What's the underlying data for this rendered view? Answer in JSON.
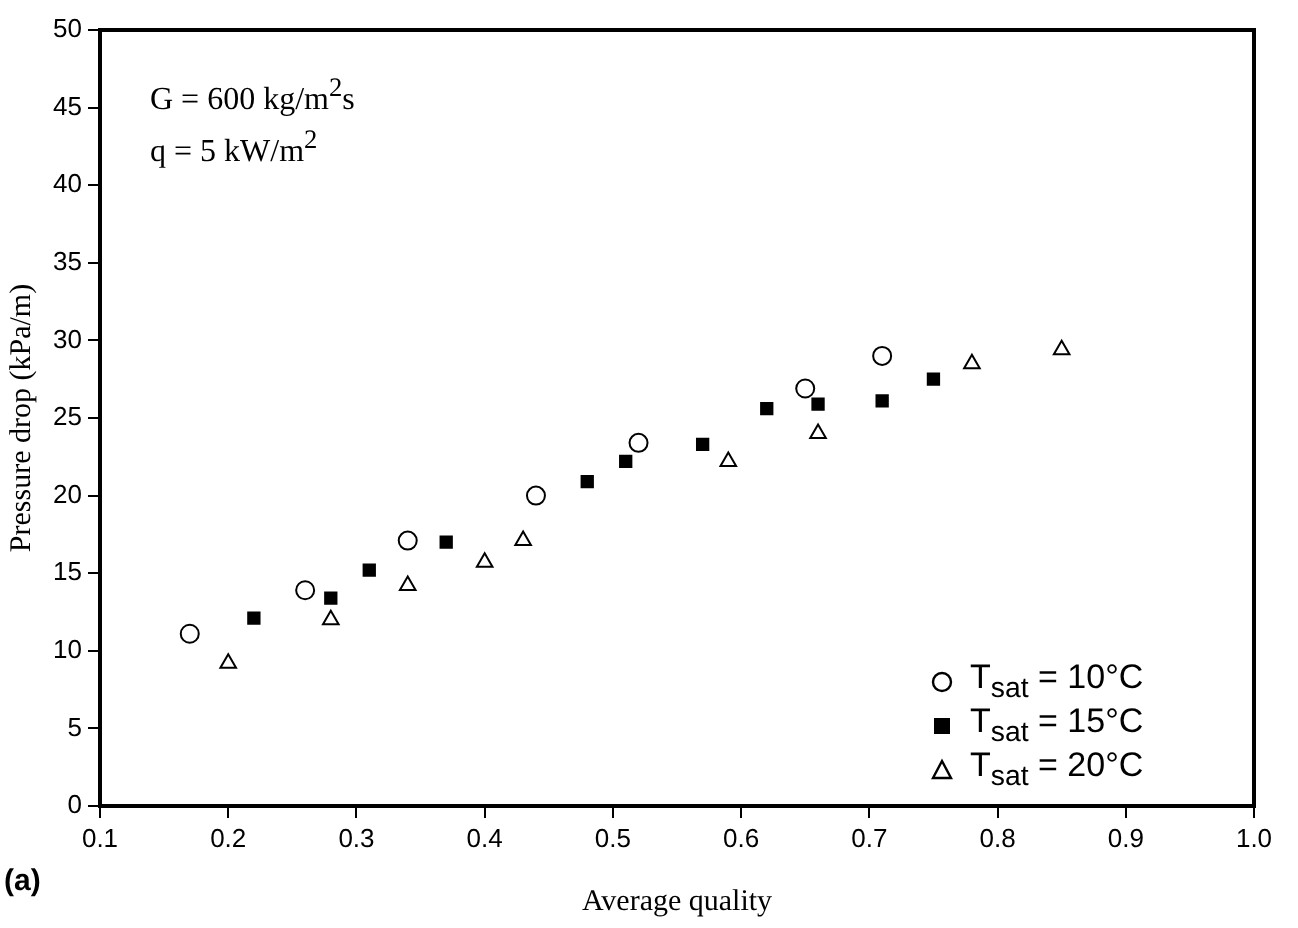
{
  "chart_data": {
    "type": "scatter",
    "xlabel": "Average quality",
    "ylabel": "Pressure drop (kPa/m)",
    "annotations": [
      "G = 600 kg/m$^{2}$s",
      "q =  5 kW/m$^{2}$",
      "(a)"
    ],
    "series": [
      {
        "name": "T$_{sat}$ = 10°C",
        "color": "#000000",
        "marker": "circle",
        "x": [
          0.17,
          0.26,
          0.34,
          0.44,
          0.52,
          0.65,
          0.71
        ],
        "values": [
          11.1,
          13.9,
          17.1,
          20.0,
          23.4,
          26.9,
          29.0
        ]
      },
      {
        "name": "T$_{sat}$ = 15°C",
        "color": "#000000",
        "marker": "square",
        "x": [
          0.22,
          0.28,
          0.31,
          0.37,
          0.48,
          0.51,
          0.57,
          0.62,
          0.66,
          0.71,
          0.75
        ],
        "values": [
          12.1,
          13.4,
          15.2,
          17.0,
          20.9,
          22.2,
          23.3,
          25.6,
          25.9,
          26.1,
          27.5
        ]
      },
      {
        "name": "T$_{sat}$ = 20°C",
        "color": "#000000",
        "marker": "triangle",
        "x": [
          0.2,
          0.28,
          0.34,
          0.4,
          0.43,
          0.59,
          0.66,
          0.78,
          0.85
        ],
        "values": [
          9.2,
          12.0,
          14.2,
          15.7,
          17.1,
          22.2,
          24.0,
          28.5,
          29.4
        ]
      }
    ],
    "xlim": [
      0.1,
      1.0
    ],
    "xticks": [
      {
        "value": 0.1,
        "label": "0.1"
      },
      {
        "value": 0.2,
        "label": "0.2"
      },
      {
        "value": 0.3,
        "label": "0.3"
      },
      {
        "value": 0.4,
        "label": "0.4"
      },
      {
        "value": 0.5,
        "label": "0.5"
      },
      {
        "value": 0.6,
        "label": "0.6"
      },
      {
        "value": 0.7,
        "label": "0.7"
      },
      {
        "value": 0.8,
        "label": "0.8"
      },
      {
        "value": 0.9,
        "label": "0.9"
      },
      {
        "value": 1.0,
        "label": "1.0"
      }
    ],
    "ylim": [
      0,
      50
    ],
    "yticks": [
      0,
      5,
      10,
      15,
      20,
      25,
      30,
      35,
      40,
      45,
      50
    ],
    "grid": false,
    "legend": "bottom right"
  }
}
